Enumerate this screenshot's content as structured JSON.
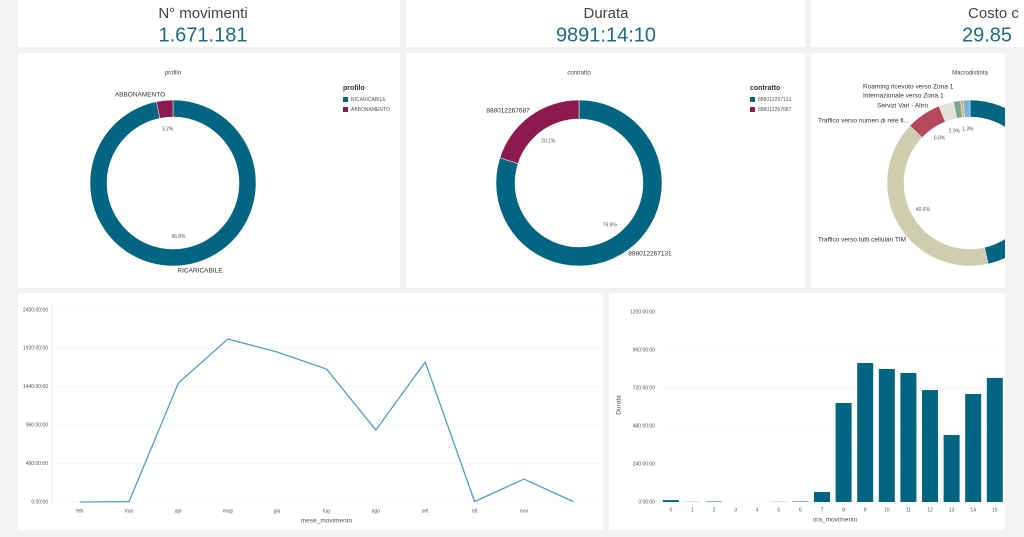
{
  "kpis": [
    {
      "title": "N° movimenti",
      "value": "1.671.181"
    },
    {
      "title": "Durata",
      "value": "9891:14:10"
    },
    {
      "title": "Costo c",
      "value": "29.85"
    }
  ],
  "chart_data": [
    {
      "type": "pie",
      "title": "profilo",
      "legend_title": "profilo",
      "legend": true,
      "categories": [
        "RICARICABILE",
        "ABBONAMENTO"
      ],
      "values": [
        96.8,
        3.2
      ],
      "value_labels": [
        "96.8%",
        "3.2%"
      ],
      "colors": [
        "#006580",
        "#8b1a4f"
      ]
    },
    {
      "type": "pie",
      "title": "contratto",
      "legend_title": "contratto",
      "legend": true,
      "categories": [
        "888012267131",
        "888012267687"
      ],
      "values": [
        79.9,
        20.1
      ],
      "value_labels": [
        "79.9%",
        "20.1%"
      ],
      "colors": [
        "#006580",
        "#8b1a4f"
      ]
    },
    {
      "type": "pie",
      "title": "Macrodistinta",
      "legend": false,
      "categories": [
        null,
        "Traffico verso tutti cellulari TIM",
        "Traffico verso numeri di rete fi...",
        "Servizi Vari - Altro",
        "Internazionale verso Zona 1",
        "Roaming ricevuto verso Zona 1",
        null
      ],
      "values": [
        46.5,
        40.6,
        6.8,
        2.9,
        1.4,
        0.5,
        1.3
      ],
      "value_labels": [
        null,
        "40.6%",
        "6.8%",
        "2.9%",
        null,
        null,
        "1.3%"
      ],
      "colors": [
        "#006580",
        "#cfcdb0",
        "#b5485a",
        "#e3e1db",
        "#7aa891",
        "#e6a06a",
        "#6fb3d6"
      ]
    },
    {
      "type": "line",
      "x_label": "mese_movimento",
      "color": "#4f9fbf",
      "grid": true,
      "categories": [
        "feb",
        "mar",
        "apr",
        "mag",
        "giu",
        "lug",
        "ago",
        "set",
        "ott",
        "nov",
        null
      ],
      "values": [
        0,
        5,
        1487,
        2037,
        1875,
        1662,
        900,
        1750,
        5,
        287,
        5
      ],
      "ylim": [
        0,
        2400
      ],
      "yticks": [
        {
          "value": 0,
          "label": "0:00:00"
        },
        {
          "value": 480,
          "label": "480:00:00"
        },
        {
          "value": 960,
          "label": "960:00:00"
        },
        {
          "value": 1440,
          "label": "1440:00:00"
        },
        {
          "value": 1920,
          "label": "1920:00:00"
        },
        {
          "value": 2400,
          "label": "2400:00:00"
        }
      ]
    },
    {
      "type": "bar",
      "x_label": "ora_movimento",
      "y_label": "Durata",
      "color": "#006580",
      "grid": true,
      "categories": [
        "0",
        "1",
        "2",
        "3",
        "4",
        "5",
        "6",
        "7",
        "8",
        "9",
        "10",
        "11",
        "12",
        "13",
        "14",
        "15"
      ],
      "values": [
        12,
        1,
        3,
        0,
        0,
        1,
        3,
        63,
        625,
        878,
        840,
        815,
        707,
        423,
        682,
        784
      ],
      "ylim": [
        0,
        1200
      ],
      "yticks": [
        {
          "value": 0,
          "label": "0:00:00"
        },
        {
          "value": 240,
          "label": "240:00:00"
        },
        {
          "value": 480,
          "label": "480:00:00"
        },
        {
          "value": 720,
          "label": "720:00:00"
        },
        {
          "value": 960,
          "label": "960:00:00"
        },
        {
          "value": 1200,
          "label": "1200:00:00"
        }
      ]
    }
  ]
}
